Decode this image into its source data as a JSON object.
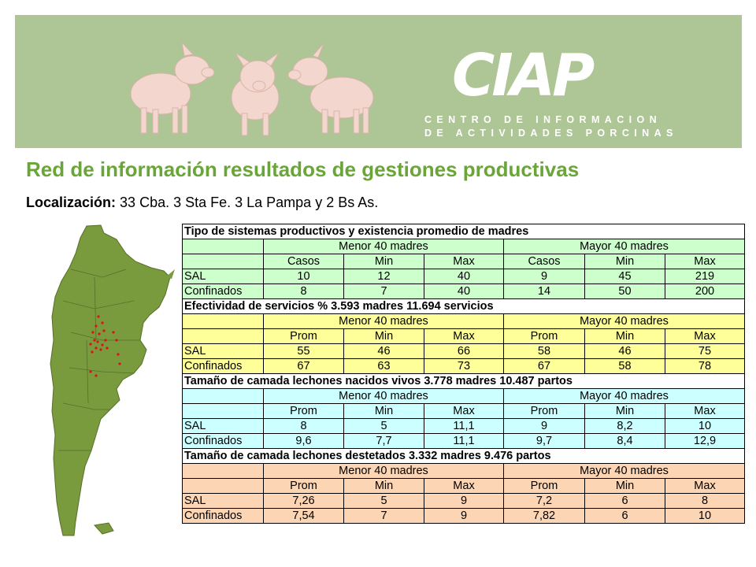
{
  "header": {
    "logo_text": "CIAP",
    "logo_sub1": "CENTRO DE INFORMACION",
    "logo_sub2": "DE ACTIVIDADES PORCINAS"
  },
  "title": "Red de información resultados de gestiones productivas",
  "location": {
    "label": "Localización:",
    "text": "33 Cba. 3 Sta Fe. 3 La Pampa y 2 Bs As."
  },
  "colors": {
    "banner": "#aec596",
    "title": "#6aa637",
    "green": "#ccffcc",
    "yellow": "#ffff99",
    "blue": "#ccffff",
    "orange": "#fcd5b4",
    "map": "#7a9a3e",
    "dots": "#e0101a"
  },
  "table": {
    "sections": [
      {
        "title": "Tipo de sistemas productivos y existencia promedio de madres",
        "group1": "Menor 40 madres",
        "group2": "Mayor 40 madres",
        "cols": [
          "Casos",
          "Min",
          "Max",
          "Casos",
          "Min",
          "Max"
        ],
        "rows": [
          {
            "label": "SAL",
            "values": [
              "10",
              "12",
              "40",
              "9",
              "45",
              "219"
            ]
          },
          {
            "label": "Confinados",
            "values": [
              "8",
              "7",
              "40",
              "14",
              "50",
              "200"
            ]
          }
        ]
      },
      {
        "title": "Efectividad de servicios %    3.593 madres  11.694 servicios",
        "group1": "Menor 40 madres",
        "group2": "Mayor 40 madres",
        "cols": [
          "Prom",
          "Min",
          "Max",
          "Prom",
          "Min",
          "Max"
        ],
        "rows": [
          {
            "label": "SAL",
            "values": [
              "55",
              "46",
              "66",
              "58",
              "46",
              "75"
            ]
          },
          {
            "label": "Confinados",
            "values": [
              "67",
              "63",
              "73",
              "67",
              "58",
              "78"
            ]
          }
        ]
      },
      {
        "title": "Tamaño de camada lechones nacidos vivos   3.778 madres   10.487 partos",
        "group1": "Menor 40 madres",
        "group2": "Mayor 40 madres",
        "cols": [
          "Prom",
          "Min",
          "Max",
          "Prom",
          "Min",
          "Max"
        ],
        "rows": [
          {
            "label": "SAL",
            "values": [
              "8",
              "5",
              "11,1",
              "9",
              "8,2",
              "10"
            ]
          },
          {
            "label": "Confinados",
            "values": [
              "9,6",
              "7,7",
              "11,1",
              "9,7",
              "8,4",
              "12,9"
            ]
          }
        ]
      },
      {
        "title": "Tamaño de camada  lechones destetados   3.332 madres   9.476 partos",
        "group1": "Menor 40 madres",
        "group2": "Mayor 40 madres",
        "cols": [
          "Prom",
          "Min",
          "Max",
          "Prom",
          "Min",
          "Max"
        ],
        "rows": [
          {
            "label": "SAL",
            "values": [
              "7,26",
              "5",
              "9",
              "7,2",
              "6",
              "8"
            ]
          },
          {
            "label": "Confinados",
            "values": [
              "7,54",
              "7",
              "9",
              "7,82",
              "6",
              "10"
            ]
          }
        ]
      }
    ]
  }
}
